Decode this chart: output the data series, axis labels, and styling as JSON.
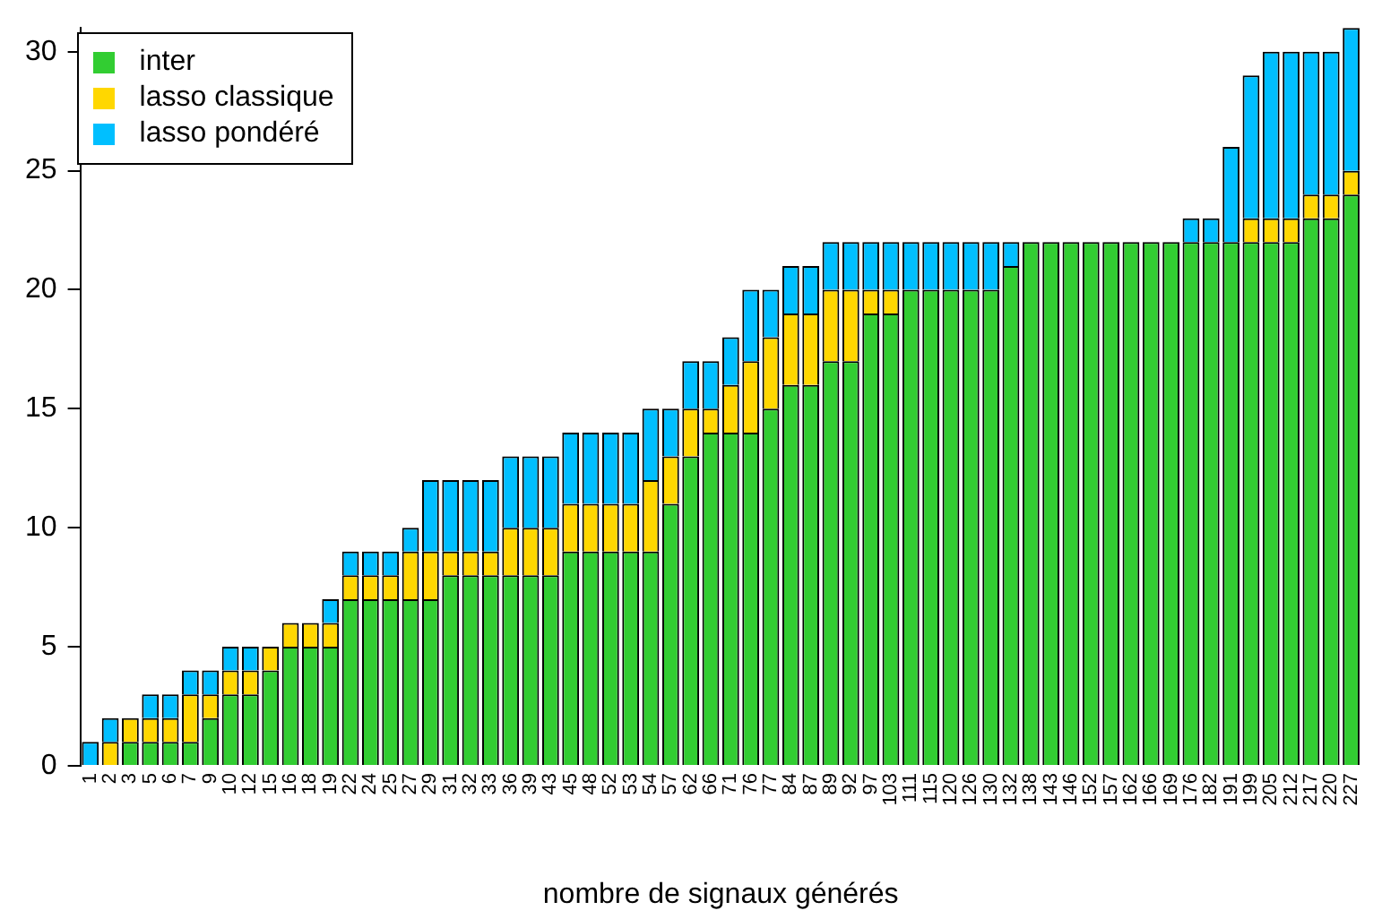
{
  "chart_data": {
    "type": "bar",
    "stacked": true,
    "xlabel": "nombre de signaux générés",
    "categories": [
      "1",
      "2",
      "3",
      "5",
      "6",
      "7",
      "9",
      "10",
      "12",
      "15",
      "16",
      "18",
      "19",
      "22",
      "24",
      "25",
      "27",
      "29",
      "31",
      "32",
      "33",
      "36",
      "39",
      "43",
      "45",
      "48",
      "52",
      "53",
      "54",
      "57",
      "62",
      "66",
      "71",
      "76",
      "77",
      "84",
      "87",
      "89",
      "92",
      "97",
      "103",
      "111",
      "115",
      "120",
      "126",
      "130",
      "132",
      "138",
      "143",
      "146",
      "152",
      "157",
      "162",
      "166",
      "169",
      "176",
      "182",
      "191",
      "199",
      "205",
      "212",
      "217",
      "220",
      "227"
    ],
    "series": [
      {
        "name": "inter",
        "color": "#32cd32",
        "values": [
          0,
          0,
          1,
          1,
          1,
          1,
          2,
          3,
          3,
          4,
          5,
          5,
          5,
          7,
          7,
          7,
          7,
          7,
          8,
          8,
          8,
          8,
          8,
          8,
          9,
          9,
          9,
          9,
          9,
          11,
          13,
          14,
          14,
          14,
          15,
          16,
          16,
          17,
          17,
          19,
          19,
          20,
          20,
          20,
          20,
          20,
          21,
          22,
          22,
          22,
          22,
          22,
          22,
          22,
          22,
          22,
          22,
          22,
          22,
          22,
          22,
          23,
          23,
          24
        ]
      },
      {
        "name": "lasso classique",
        "color": "#ffd700",
        "values": [
          0,
          1,
          1,
          1,
          1,
          2,
          1,
          1,
          1,
          1,
          1,
          1,
          1,
          1,
          1,
          1,
          2,
          2,
          1,
          1,
          1,
          2,
          2,
          2,
          2,
          2,
          2,
          2,
          3,
          2,
          2,
          1,
          2,
          3,
          3,
          3,
          3,
          3,
          3,
          1,
          1,
          0,
          0,
          0,
          0,
          0,
          0,
          0,
          0,
          0,
          0,
          0,
          0,
          0,
          0,
          0,
          0,
          0,
          1,
          1,
          1,
          1,
          1,
          1
        ]
      },
      {
        "name": "lasso pondéré",
        "color": "#00bfff",
        "values": [
          1,
          1,
          0,
          1,
          1,
          1,
          1,
          1,
          1,
          0,
          0,
          0,
          1,
          1,
          1,
          1,
          1,
          3,
          3,
          3,
          3,
          3,
          3,
          3,
          3,
          3,
          3,
          3,
          3,
          2,
          2,
          2,
          2,
          3,
          2,
          2,
          2,
          2,
          2,
          2,
          2,
          2,
          2,
          2,
          2,
          2,
          1,
          0,
          0,
          0,
          0,
          0,
          0,
          0,
          0,
          1,
          1,
          4,
          6,
          7,
          7,
          6,
          6,
          6
        ]
      }
    ],
    "ylim": [
      0,
      31
    ],
    "yticks": [
      0,
      5,
      10,
      15,
      20,
      25,
      30
    ],
    "grid": false,
    "legend": "top left"
  }
}
